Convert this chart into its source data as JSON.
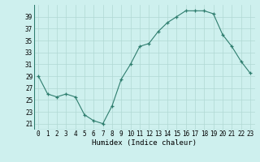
{
  "x": [
    0,
    1,
    2,
    3,
    4,
    5,
    6,
    7,
    8,
    9,
    10,
    11,
    12,
    13,
    14,
    15,
    16,
    17,
    18,
    19,
    20,
    21,
    22,
    23
  ],
  "y": [
    29,
    26,
    25.5,
    26,
    25.5,
    22.5,
    21.5,
    21,
    24,
    28.5,
    31,
    34,
    34.5,
    36.5,
    38,
    39,
    40,
    40,
    40,
    39.5,
    36,
    34,
    31.5,
    29.5
  ],
  "xlabel": "Humidex (Indice chaleur)",
  "xlim": [
    -0.5,
    23.5
  ],
  "ylim": [
    20.0,
    41.0
  ],
  "yticks": [
    21,
    23,
    25,
    27,
    29,
    31,
    33,
    35,
    37,
    39
  ],
  "xticks": [
    0,
    1,
    2,
    3,
    4,
    5,
    6,
    7,
    8,
    9,
    10,
    11,
    12,
    13,
    14,
    15,
    16,
    17,
    18,
    19,
    20,
    21,
    22,
    23
  ],
  "line_color": "#2e7d6e",
  "marker_color": "#2e7d6e",
  "bg_color": "#cef0ee",
  "grid_color": "#b0d8d4",
  "xlabel_fontsize": 6.5,
  "tick_fontsize": 5.5
}
